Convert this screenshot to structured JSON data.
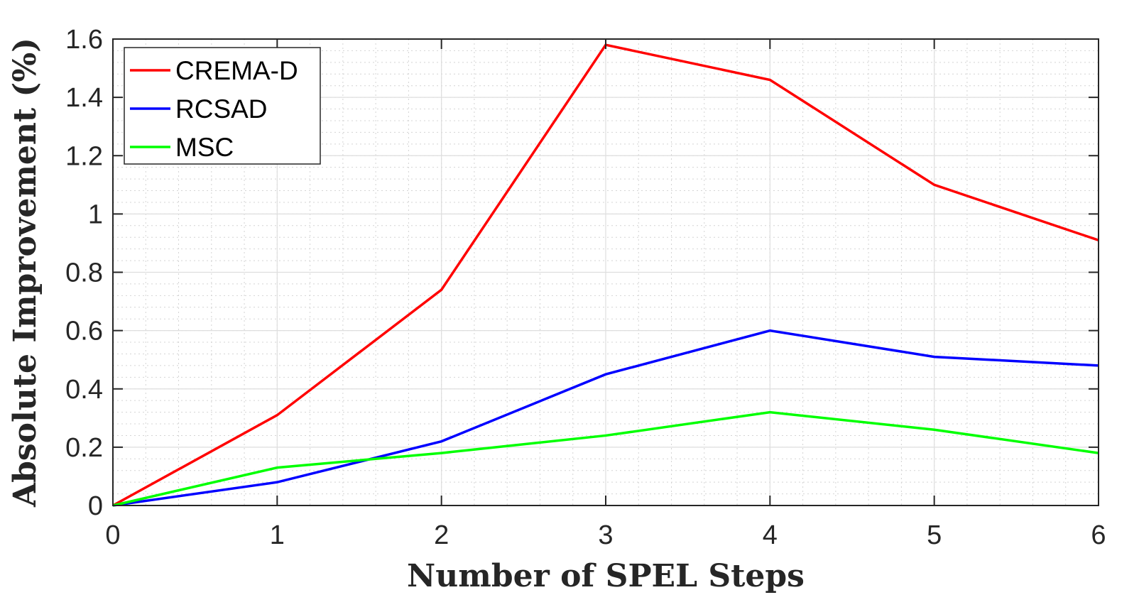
{
  "chart_data": {
    "type": "line",
    "title": "",
    "xlabel": "Number of SPEL Steps",
    "ylabel": "Absolute Improvement (%)",
    "x": [
      0,
      1,
      2,
      3,
      4,
      5,
      6
    ],
    "xlim": [
      0,
      6
    ],
    "ylim": [
      0,
      1.6
    ],
    "xticks": [
      "0",
      "1",
      "2",
      "3",
      "4",
      "5",
      "6"
    ],
    "yticks": [
      "0",
      "0.2",
      "0.4",
      "0.6",
      "0.8",
      "1",
      "1.2",
      "1.4",
      "1.6"
    ],
    "grid": true,
    "minor_grid": true,
    "legend_position": "top-left",
    "series": [
      {
        "name": "CREMA-D",
        "color": "#ff0000",
        "values": [
          0,
          0.31,
          0.74,
          1.58,
          1.46,
          1.1,
          0.91
        ]
      },
      {
        "name": "RCSAD",
        "color": "#0000ff",
        "values": [
          0,
          0.08,
          0.22,
          0.45,
          0.6,
          0.51,
          0.48
        ]
      },
      {
        "name": "MSC",
        "color": "#00ff00",
        "values": [
          0,
          0.13,
          0.18,
          0.24,
          0.32,
          0.26,
          0.18
        ]
      }
    ]
  }
}
